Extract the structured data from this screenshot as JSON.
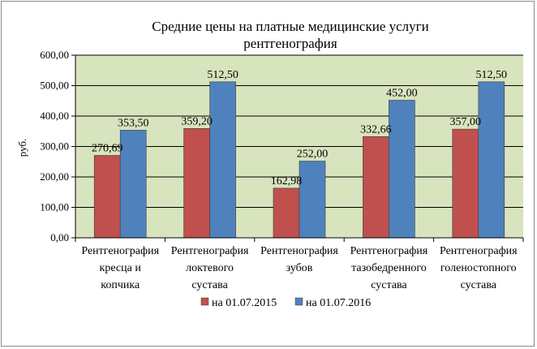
{
  "chart_data": {
    "type": "bar",
    "title": [
      "Средние цены на платные медицинские услуги",
      "рентгенография"
    ],
    "ylabel": "руб.",
    "ylim": [
      0,
      600
    ],
    "yticks": [
      "0,00",
      "100,00",
      "200,00",
      "300,00",
      "400,00",
      "500,00",
      "600,00"
    ],
    "grid": true,
    "legend_position": "bottom",
    "categories": [
      [
        "Рентгенография",
        "кресца и",
        "копчика"
      ],
      [
        "Рентгенография",
        "локтевого",
        "сустава"
      ],
      [
        "Рентгенография",
        "зубов"
      ],
      [
        "Рентгенография",
        "тазобедренного",
        "сустава"
      ],
      [
        "Рентгенография",
        "голеностопного",
        "сустава"
      ]
    ],
    "series": [
      {
        "name": "на 01.07.2015",
        "color": "#C0504D",
        "values": [
          270.69,
          359.2,
          162.98,
          332.66,
          357.0
        ],
        "labels": [
          "270,69",
          "359,20",
          "162,98",
          "332,66",
          "357,00"
        ]
      },
      {
        "name": "на 01.07.2016",
        "color": "#4F81BD",
        "values": [
          353.5,
          512.5,
          252.0,
          452.0,
          512.5
        ],
        "labels": [
          "353,50",
          "512,50",
          "252,00",
          "452,00",
          "512,50"
        ]
      }
    ],
    "plot_background": "#D7E4BD"
  }
}
